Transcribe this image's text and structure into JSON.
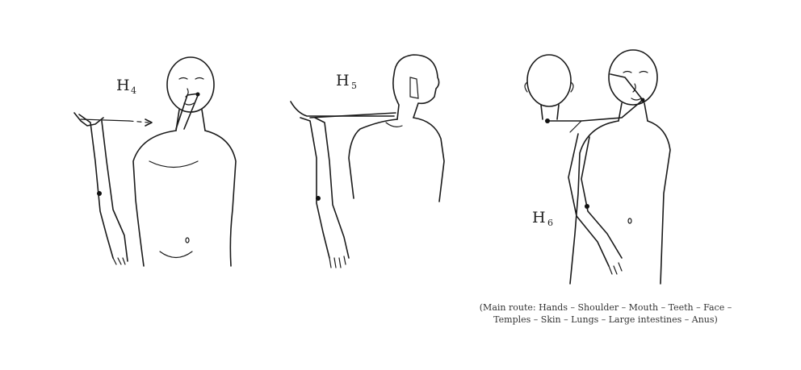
{
  "figures": [
    {
      "label": "H",
      "subscript": "4"
    },
    {
      "label": "H",
      "subscript": "5"
    },
    {
      "label": "H",
      "subscript": "6"
    }
  ],
  "caption": {
    "line1": "(Main route: Hands – Shoulder – Mouth – Teeth – Face –",
    "line2": "Temples – Skin – Lungs – Large intestines – Anus)"
  }
}
